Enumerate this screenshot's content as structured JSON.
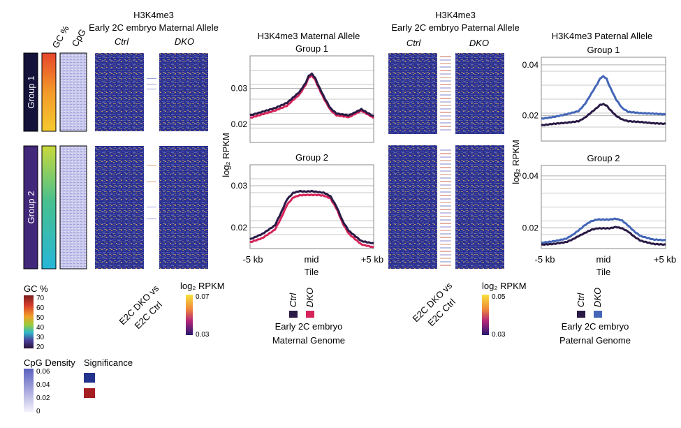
{
  "colors": {
    "heatmap_low": "#2a2f8f",
    "heatmap_high": "#f2b84b",
    "ctrl": "#2a1a45",
    "dko_maternal": "#d6245a",
    "dko_paternal": "#4466b8",
    "sig_blue": "#23328c",
    "sig_red": "#a51e22",
    "group1_label_bg": "#14123a",
    "group2_label_bg": "#41287a"
  },
  "maternal_heatmap": {
    "title_line1": "H3K4me3",
    "title_line2": "Early 2C embryo Maternal Allele",
    "col_ctrl": "Ctrl",
    "col_dko": "DKO",
    "col_gc": "GC %",
    "col_cpg": "CpG",
    "group1": "Group 1",
    "group2": "Group 2",
    "sig_label_line1": "E2C DKO vs",
    "sig_label_line2": "E2C Ctrl",
    "legend_title": "log₂ RPKM",
    "legend_max": "0.07",
    "legend_min": "0.03"
  },
  "paternal_heatmap": {
    "title_line1": "H3K4me3",
    "title_line2": "Early 2C embryo Paternal Allele",
    "col_ctrl": "Ctrl",
    "col_dko": "DKO",
    "sig_label_line1": "E2C DKO vs",
    "sig_label_line2": "E2C Ctrl",
    "legend_title": "log₂ RPKM",
    "legend_max": "0.05",
    "legend_min": "0.03"
  },
  "gc_legend": {
    "title": "GC %",
    "ticks": [
      "70",
      "60",
      "50",
      "40",
      "30",
      "20"
    ]
  },
  "cpg_legend": {
    "title": "CpG Density",
    "ticks": [
      "0.06",
      "0.04",
      "0.02",
      "0"
    ]
  },
  "significance_legend": {
    "title": "Significance"
  },
  "maternal_legend": {
    "ctrl": "Ctrl",
    "dko": "DKO",
    "caption_line1": "Early 2C embryo",
    "caption_line2": "Maternal Genome"
  },
  "paternal_legend": {
    "ctrl": "Ctrl",
    "dko": "DKO",
    "caption_line1": "Early 2C embryo",
    "caption_line2": "Paternal Genome"
  },
  "chart_data": [
    {
      "type": "line",
      "title": "H3K4me3 Maternal Allele",
      "subtitle": "Group 1",
      "xlabel": "Tile",
      "ylabel": "log₂ RPKM",
      "x_ticks": [
        "-5 kb",
        "mid",
        "+5 kb"
      ],
      "x": [
        -5,
        -4,
        -3,
        -2,
        -1.5,
        -1,
        -0.5,
        -0.25,
        0,
        0.25,
        0.5,
        1,
        1.5,
        2,
        3,
        4,
        5
      ],
      "ylim": [
        0.015,
        0.039
      ],
      "yticks": [
        "0.02",
        "0.03"
      ],
      "series": [
        {
          "name": "Ctrl",
          "values": [
            0.0225,
            0.0235,
            0.0245,
            0.026,
            0.0275,
            0.029,
            0.0315,
            0.0335,
            0.034,
            0.033,
            0.031,
            0.0275,
            0.0245,
            0.023,
            0.0225,
            0.0242,
            0.0222
          ]
        },
        {
          "name": "DKO",
          "values": [
            0.0218,
            0.0228,
            0.0238,
            0.0252,
            0.0268,
            0.0283,
            0.031,
            0.033,
            0.0335,
            0.0325,
            0.0305,
            0.027,
            0.024,
            0.0225,
            0.022,
            0.0238,
            0.0218
          ]
        }
      ]
    },
    {
      "type": "line",
      "title": "",
      "subtitle": "Group 2",
      "xlabel": "Tile",
      "ylabel": "log₂ RPKM",
      "x_ticks": [
        "-5 kb",
        "mid",
        "+5 kb"
      ],
      "x": [
        -5,
        -4,
        -3,
        -2.5,
        -2,
        -1.5,
        -1,
        -0.5,
        0,
        0.5,
        1,
        1.5,
        2,
        2.5,
        3,
        4,
        5
      ],
      "ylim": [
        0.015,
        0.035
      ],
      "yticks": [
        "0.02",
        "0.03"
      ],
      "series": [
        {
          "name": "Ctrl",
          "values": [
            0.0172,
            0.0185,
            0.0205,
            0.0235,
            0.0268,
            0.0283,
            0.0287,
            0.0286,
            0.0287,
            0.0285,
            0.0283,
            0.0275,
            0.025,
            0.0215,
            0.0192,
            0.0168,
            0.0162
          ]
        },
        {
          "name": "DKO",
          "values": [
            0.0165,
            0.0175,
            0.0195,
            0.0222,
            0.0255,
            0.0272,
            0.0277,
            0.0278,
            0.0278,
            0.0278,
            0.0276,
            0.027,
            0.0245,
            0.021,
            0.0185,
            0.016,
            0.0153
          ]
        }
      ]
    },
    {
      "type": "line",
      "title": "H3K4me3 Paternal Allele",
      "subtitle": "Group 1",
      "xlabel": "Tile",
      "ylabel": "log₂ RPKM",
      "x_ticks": [
        "-5 kb",
        "mid",
        "+5 kb"
      ],
      "x": [
        -5,
        -4,
        -3,
        -2,
        -1.5,
        -1,
        -0.5,
        -0.25,
        0,
        0.25,
        0.5,
        1,
        1.5,
        2,
        3,
        4,
        5
      ],
      "ylim": [
        0.01,
        0.043
      ],
      "yticks": [
        "0.02",
        "0.04"
      ],
      "series": [
        {
          "name": "Ctrl",
          "values": [
            0.0162,
            0.0168,
            0.0172,
            0.0178,
            0.0192,
            0.0212,
            0.0232,
            0.0243,
            0.0245,
            0.024,
            0.0225,
            0.02,
            0.0185,
            0.0178,
            0.0175,
            0.017,
            0.0168
          ]
        },
        {
          "name": "DKO",
          "values": [
            0.0188,
            0.0195,
            0.0205,
            0.0218,
            0.0245,
            0.0285,
            0.0325,
            0.0348,
            0.0355,
            0.0345,
            0.0315,
            0.0265,
            0.023,
            0.0215,
            0.021,
            0.0208,
            0.0205
          ]
        }
      ]
    },
    {
      "type": "line",
      "title": "",
      "subtitle": "Group 2",
      "xlabel": "Tile",
      "ylabel": "log₂ RPKM",
      "x_ticks": [
        "-5 kb",
        "mid",
        "+5 kb"
      ],
      "x": [
        -5,
        -4,
        -3,
        -2.5,
        -2,
        -1.5,
        -1,
        -0.5,
        0,
        0.5,
        1,
        1.5,
        2,
        2.5,
        3,
        4,
        5
      ],
      "ylim": [
        0.012,
        0.044
      ],
      "yticks": [
        "0.02",
        "0.04"
      ],
      "series": [
        {
          "name": "Ctrl",
          "values": [
            0.0135,
            0.0138,
            0.0145,
            0.0155,
            0.0168,
            0.018,
            0.0192,
            0.0198,
            0.0198,
            0.0198,
            0.0203,
            0.0198,
            0.0185,
            0.0165,
            0.015,
            0.0138,
            0.0135
          ]
        },
        {
          "name": "DKO",
          "values": [
            0.0142,
            0.0148,
            0.0158,
            0.0172,
            0.019,
            0.021,
            0.0225,
            0.0232,
            0.0232,
            0.0232,
            0.0235,
            0.0228,
            0.0208,
            0.0185,
            0.0168,
            0.0155,
            0.0152
          ]
        }
      ]
    }
  ]
}
